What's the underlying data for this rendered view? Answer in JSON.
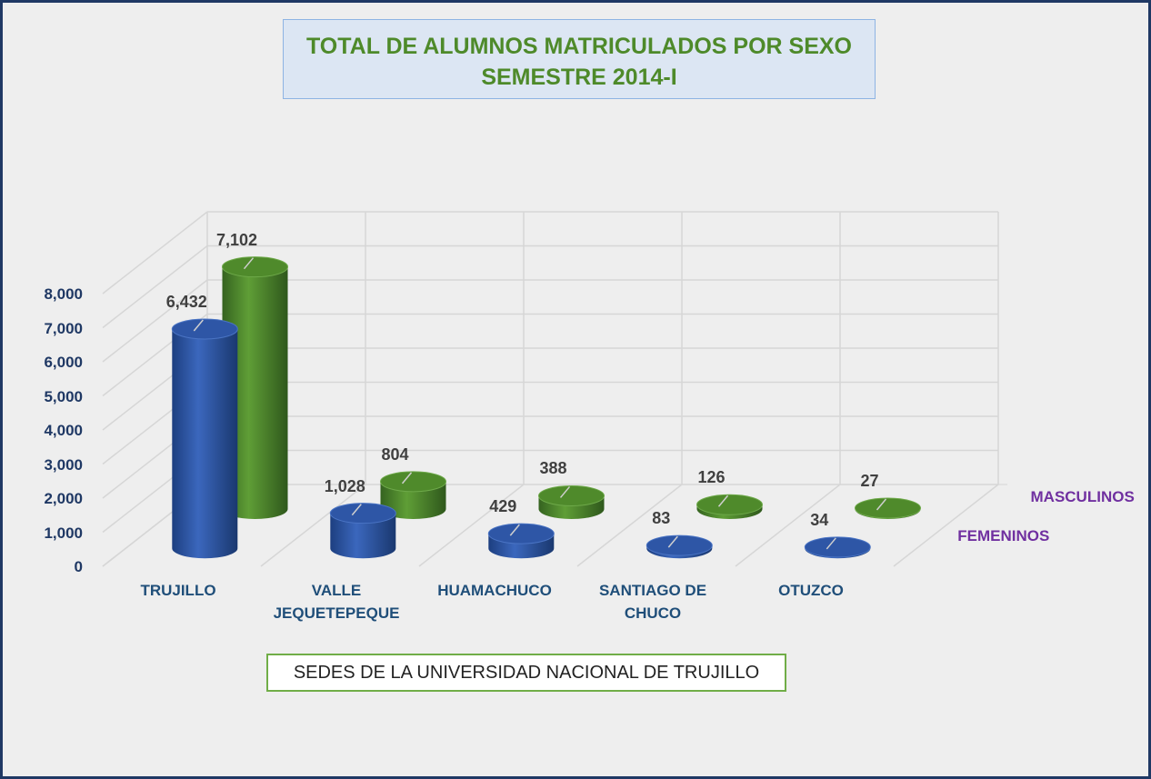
{
  "chart_data": {
    "type": "bar3d-cylinder",
    "title": [
      "TOTAL DE ALUMNOS MATRICULADOS POR SEXO",
      "SEMESTRE 2014-I"
    ],
    "x_label": "SEDES DE LA UNIVERSIDAD NACIONAL DE TRUJILLO",
    "categories": [
      "TRUJILLO",
      "VALLE JEQUETEPEQUE",
      "HUAMACHUCO",
      "SANTIAGO DE CHUCO",
      "OTUZCO"
    ],
    "series": [
      {
        "name": "FEMENINOS",
        "color": "#2e56a6",
        "values": [
          6432,
          1028,
          429,
          83,
          34
        ],
        "value_labels": [
          "6,432",
          "1,028",
          "429",
          "83",
          "34"
        ]
      },
      {
        "name": "MASCULINOS",
        "color": "#4f8a2b",
        "values": [
          7102,
          804,
          388,
          126,
          27
        ],
        "value_labels": [
          "7,102",
          "804",
          "388",
          "126",
          "27"
        ]
      }
    ],
    "ylim": [
      0,
      8000
    ],
    "yticks": [
      0,
      {
        "value": 1000,
        "label": "1,000"
      },
      {
        "value": 2000,
        "label": "2,000"
      },
      {
        "value": 3000,
        "label": "3,000"
      },
      {
        "value": 4000,
        "label": "4,000"
      },
      {
        "value": 5000,
        "label": "5,000"
      },
      {
        "value": 6000,
        "label": "6,000"
      },
      {
        "value": 7000,
        "label": "7,000"
      },
      {
        "value": 8000,
        "label": "8,000"
      }
    ],
    "grid": true
  }
}
